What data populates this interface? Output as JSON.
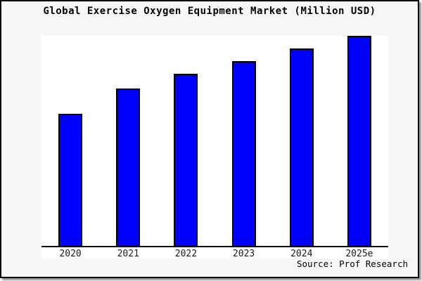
{
  "chart_data": {
    "type": "bar",
    "title": "Global Exercise Oxygen Equipment Market (Million USD)",
    "categories": [
      "2020",
      "2021",
      "2022",
      "2023",
      "2024",
      "2025e"
    ],
    "values": [
      63,
      75,
      82,
      88,
      94,
      100
    ],
    "value_scale": "relative bar height, tallest bar (2025e) = 100; y-axis is unlabeled",
    "xlabel": "",
    "ylabel": "",
    "ylim": [
      0,
      100
    ],
    "grid": false,
    "legend": false,
    "bar_color": "#0000ff",
    "bar_border_color": "#000000"
  },
  "footer": {
    "source": "Source: Prof Research"
  },
  "colors": {
    "figure_background": "#f7f7f7",
    "plot_background": "#ffffff",
    "frame_border": "#000000",
    "shadow": "#9a9a9a"
  }
}
